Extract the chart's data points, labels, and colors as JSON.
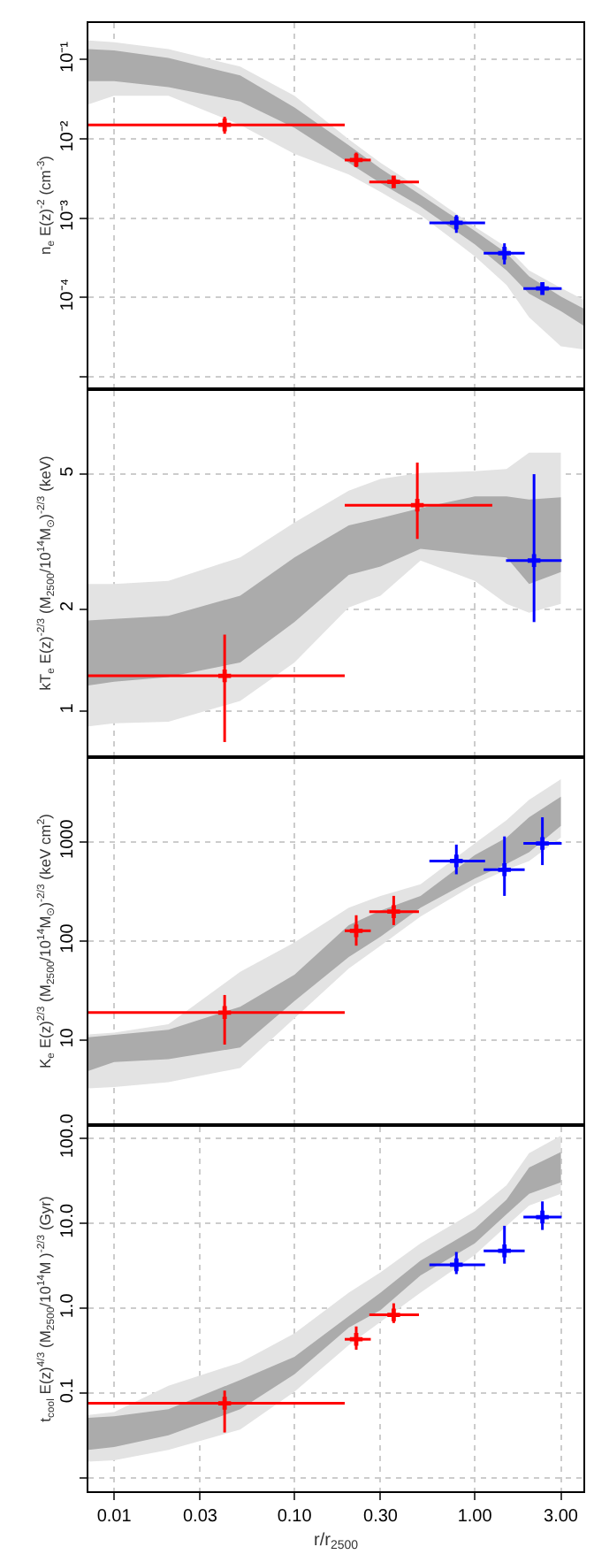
{
  "chart_data": [
    {
      "type": "scatter",
      "ylabel": "n$_{e}$ E(z)$^{-2}$ (cm$^{-3}$)",
      "log": "xy",
      "grid": true,
      "marker": "cross",
      "tick_labels": "y",
      "xlim": [
        0.0072,
        4.0
      ],
      "xticks": [
        {
          "value": 0.01,
          "label": null
        },
        {
          "value": 0.1,
          "label": null
        },
        {
          "value": 1,
          "label": null
        }
      ],
      "ylim": [
        7.3e-06,
        0.29
      ],
      "yticks": [
        {
          "value": 0.1,
          "label": "10⁻¹"
        },
        {
          "value": 0.01,
          "label": "10⁻²"
        },
        {
          "value": 0.001,
          "label": "10⁻³"
        },
        {
          "value": 0.0001,
          "label": "10⁻⁴"
        },
        {
          "value": 1e-05,
          "label": null
        }
      ],
      "series": [
        {
          "color": "#e3e3e3",
          "x": [
            0.0072,
            0.01,
            0.02,
            0.05,
            0.1,
            0.2,
            0.3,
            0.5,
            1.0,
            1.5,
            2.0,
            3.0,
            4.0
          ],
          "values": [
            null,
            null,
            null,
            null,
            null,
            null,
            null,
            null,
            null,
            null,
            null,
            null,
            null
          ],
          "upper": [
            0.175,
            0.166,
            0.136,
            0.0817,
            0.035,
            0.00984,
            0.005,
            0.00233,
            0.000776,
            0.000429,
            0.000218,
            0.000131,
            9.35e-05
          ],
          "lower": [
            0.0272,
            0.035,
            0.035,
            0.015,
            0.00644,
            0.00356,
            0.00214,
            0.00109,
            0.00033,
            0.000143,
            5.6e-05,
            2.4e-05,
            2.2e-05
          ]
        },
        {
          "color": "#ababab",
          "x": [
            0.0072,
            0.01,
            0.02,
            0.05,
            0.1,
            0.2,
            0.3,
            0.5,
            1.0,
            1.5,
            2.0,
            3.0,
            4.0
          ],
          "values": [
            null,
            null,
            null,
            null,
            null,
            null,
            null,
            null,
            null,
            null,
            null,
            null,
            null
          ],
          "upper": [
            0.136,
            0.131,
            0.105,
            0.0632,
            0.0249,
            0.0083,
            0.00422,
            0.00197,
            0.00069,
            0.00036,
            0.000184,
            0.000102,
            7.2e-05
          ],
          "lower": [
            0.0535,
            0.0535,
            0.0451,
            0.0296,
            0.0138,
            0.005,
            0.00276,
            0.0014,
            0.000467,
            0.000218,
            0.000111,
            6.7e-05,
            4.4e-05
          ]
        },
        {
          "color": "#ff0000",
          "x": [
            0.041,
            0.22,
            0.355
          ],
          "values": [
            0.015,
            0.0054,
            0.00286
          ],
          "errors": [
            [
              0.0116,
              0.019
            ],
            [
              0.0044,
              0.0067
            ],
            [
              0.0025,
              0.00327
            ]
          ],
          "xerrors": [
            [
              0.0072,
              0.19
            ],
            [
              0.19,
              0.265
            ],
            [
              0.26,
              0.49
            ]
          ]
        },
        {
          "color": "#0000ff",
          "x": [
            0.79,
            1.46,
            2.37
          ],
          "values": [
            0.00087,
            0.00036,
            0.000129
          ],
          "errors": [
            [
              0.00065,
              0.00109
            ],
            [
              0.00026,
              0.00048
            ],
            [
              0.000109,
              0.000153
            ]
          ],
          "xerrors": [
            [
              0.56,
              1.14
            ],
            [
              1.12,
              1.89
            ],
            [
              1.86,
              3.03
            ]
          ]
        }
      ]
    },
    {
      "type": "scatter",
      "ylabel": "kT$_{e}$ E(z)$^{-2/3}$ (M$_{2500}$/10$^{14}$M$_{⊙}$)$^{-2/3}$ (keV)",
      "log": "xy",
      "grid": true,
      "marker": "cross",
      "tick_labels": "y",
      "xlim": [
        0.0072,
        4.0
      ],
      "xticks": [
        {
          "value": 0.01,
          "label": null
        },
        {
          "value": 0.1,
          "label": null
        },
        {
          "value": 1,
          "label": null
        }
      ],
      "ylim": [
        0.74,
        8.8
      ],
      "yticks": [
        1,
        2,
        5
      ],
      "series": [
        {
          "color": "#e3e3e3",
          "x": [
            0.0072,
            0.01,
            0.02,
            0.05,
            0.1,
            0.2,
            0.3,
            0.5,
            1.0,
            1.5,
            2.0,
            3.0
          ],
          "values": [
            null,
            null,
            null,
            null,
            null,
            null,
            null,
            null,
            null,
            null,
            null,
            null
          ],
          "upper": [
            2.37,
            2.37,
            2.42,
            2.84,
            3.6,
            4.47,
            4.84,
            5.04,
            5.1,
            5.18,
            5.79,
            5.79
          ],
          "lower": [
            0.9,
            0.92,
            0.93,
            1.07,
            1.39,
            2.02,
            2.19,
            2.78,
            2.42,
            2.07,
            1.95,
            2.07
          ]
        },
        {
          "color": "#ababab",
          "x": [
            0.0072,
            0.01,
            0.02,
            0.05,
            0.1,
            0.2,
            0.3,
            0.5,
            1.0,
            1.5,
            2.0,
            3.0
          ],
          "values": [
            null,
            null,
            null,
            null,
            null,
            null,
            null,
            null,
            null,
            null,
            null,
            null
          ],
          "upper": [
            1.85,
            1.87,
            1.91,
            2.19,
            2.84,
            3.53,
            3.71,
            3.97,
            4.3,
            4.3,
            4.21,
            4.27
          ],
          "lower": [
            1.19,
            1.22,
            1.26,
            1.39,
            1.83,
            2.52,
            2.67,
            3.01,
            2.89,
            2.84,
            2.37,
            2.57
          ]
        },
        {
          "color": "#ff0000",
          "x": [
            0.041,
            0.48
          ],
          "values": [
            1.27,
            4.05
          ],
          "errors": [
            [
              0.81,
              1.68
            ],
            [
              3.22,
              5.41
            ]
          ],
          "xerrors": [
            [
              0.0072,
              0.19
            ],
            [
              0.19,
              1.25
            ]
          ]
        },
        {
          "color": "#0000ff",
          "x": [
            2.13
          ],
          "values": [
            2.78
          ],
          "errors": [
            [
              1.83,
              5.0
            ]
          ],
          "xerrors": [
            [
              1.49,
              3.03
            ]
          ]
        }
      ]
    },
    {
      "type": "scatter",
      "ylabel": "K$_{e}$ E(z)$^{2/3}$ (M$_{2500}$/10$^{14}$M$_{⊙}$)$^{-2/3}$ (keV cm$^{2}$)",
      "log": "xy",
      "grid": true,
      "marker": "cross",
      "tick_labels": "y",
      "xlim": [
        0.0072,
        4.0
      ],
      "xticks": [
        {
          "value": 0.01,
          "label": null
        },
        {
          "value": 0.1,
          "label": null
        },
        {
          "value": 1,
          "label": null
        }
      ],
      "ylim": [
        1.47,
        6800
      ],
      "yticks": [
        10,
        100,
        1000
      ],
      "series": [
        {
          "color": "#e3e3e3",
          "x": [
            0.0072,
            0.01,
            0.02,
            0.05,
            0.1,
            0.2,
            0.3,
            0.5,
            1.0,
            1.5,
            2.0,
            3.0
          ],
          "values": [
            null,
            null,
            null,
            null,
            null,
            null,
            null,
            null,
            null,
            null,
            null,
            null
          ],
          "upper": [
            11.5,
            12.0,
            14.6,
            49,
            97,
            217,
            285,
            373,
            960,
            1650,
            2640,
            4250
          ],
          "lower": [
            3.3,
            3.4,
            3.8,
            5.3,
            16.7,
            53,
            90,
            177,
            373,
            523,
            640,
            1100
          ]
        },
        {
          "color": "#ababab",
          "x": [
            0.0072,
            0.01,
            0.02,
            0.05,
            0.1,
            0.2,
            0.3,
            0.5,
            1.0,
            1.5,
            2.0,
            3.0
          ],
          "values": [
            null,
            null,
            null,
            null,
            null,
            null,
            null,
            null,
            null,
            null,
            null,
            null
          ],
          "upper": [
            10.8,
            11.4,
            12.8,
            21.9,
            46,
            145,
            203,
            285,
            733,
            1100,
            1760,
            2830
          ],
          "lower": [
            4.95,
            6.07,
            6.5,
            8.5,
            25,
            69,
            111,
            217,
            427,
            598,
            784,
            1440
          ]
        },
        {
          "color": "#ff0000",
          "x": [
            0.041,
            0.22,
            0.355
          ],
          "values": [
            19.1,
            127,
            198
          ],
          "errors": [
            [
              9.1,
              28.7
            ],
            [
              90,
              182
            ],
            [
              145,
              285
            ]
          ],
          "xerrors": [
            [
              0.0072,
              0.19
            ],
            [
              0.19,
              0.265
            ],
            [
              0.26,
              0.49
            ]
          ]
        },
        {
          "color": "#0000ff",
          "x": [
            0.79,
            1.46,
            2.37
          ],
          "values": [
            640,
            523,
            960
          ],
          "errors": [
            [
              470,
              935
            ],
            [
              285,
              1130
            ],
            [
              582,
              1760
            ]
          ],
          "xerrors": [
            [
              0.56,
              1.14
            ],
            [
              1.12,
              1.89
            ],
            [
              1.86,
              3.03
            ]
          ]
        }
      ]
    },
    {
      "type": "scatter",
      "ylabel": "t$_{cool}$ E(z)$^{4/3}$ (M$_{2500}$/10$^{14}$M )$^{-2/3}$ (Gyr)",
      "xlabel": "r/r$_{2500}$",
      "log": "xy",
      "grid": true,
      "marker": "cross",
      "xlim": [
        0.0072,
        4.0
      ],
      "xticks": [
        0.01,
        0.03,
        {
          "value": 0.1,
          "label": "0.10"
        },
        {
          "value": 0.3,
          "label": "0.30"
        },
        {
          "value": 1,
          "label": "1.00"
        },
        {
          "value": 3,
          "label": "3.00"
        }
      ],
      "ylim": [
        0.00706,
        137
      ],
      "yticks": [
        {
          "value": 100,
          "label": "100.0"
        },
        {
          "value": 10,
          "label": "10.0"
        },
        {
          "value": 1,
          "label": "1.0"
        },
        0.1,
        {
          "value": 0.01,
          "label": null
        }
      ],
      "series": [
        {
          "color": "#e3e3e3",
          "x": [
            0.0072,
            0.01,
            0.02,
            0.05,
            0.1,
            0.2,
            0.3,
            0.5,
            1.0,
            1.5,
            2.0,
            3.0
          ],
          "values": [
            null,
            null,
            null,
            null,
            null,
            null,
            null,
            null,
            null,
            null,
            null,
            null
          ],
          "upper": [
            0.0558,
            0.0604,
            0.123,
            0.231,
            0.508,
            1.53,
            2.66,
            5.85,
            13.9,
            28.3,
            67.4,
            108
          ],
          "lower": [
            0.0158,
            0.0163,
            0.0217,
            0.0376,
            0.105,
            0.37,
            0.695,
            1.53,
            4.27,
            9.4,
            16.3,
            22.3
          ]
        },
        {
          "color": "#ababab",
          "x": [
            0.0072,
            0.01,
            0.02,
            0.05,
            0.1,
            0.2,
            0.3,
            0.5,
            1.0,
            1.5,
            2.0,
            3.0
          ],
          "values": [
            null,
            null,
            null,
            null,
            null,
            null,
            null,
            null,
            null,
            null,
            null,
            null
          ],
          "upper": [
            0.0515,
            0.054,
            0.0653,
            0.144,
            0.27,
            0.815,
            1.53,
            3.65,
            8.67,
            19.1,
            45.5,
            69.5
          ],
          "lower": [
            0.0217,
            0.0234,
            0.0321,
            0.0653,
            0.168,
            0.594,
            0.953,
            2.45,
            5.85,
            12.9,
            22.3,
            30.6
          ]
        },
        {
          "color": "#ff0000",
          "x": [
            0.041,
            0.22,
            0.355
          ],
          "values": [
            0.0766,
            0.434,
            0.841
          ],
          "errors": [
            [
              0.0347,
              0.108
            ],
            [
              0.327,
              0.614
            ],
            [
              0.674,
              1.15
            ]
          ],
          "xerrors": [
            [
              0.0072,
              0.19
            ],
            [
              0.19,
              0.265
            ],
            [
              0.26,
              0.49
            ]
          ]
        },
        {
          "color": "#0000ff",
          "x": [
            0.79,
            1.46,
            2.37
          ],
          "values": [
            3.27,
            4.77,
            11.9
          ],
          "errors": [
            [
              2.54,
              4.62
            ],
            [
              3.37,
              9.4
            ],
            [
              8.4,
              18.2
            ]
          ],
          "xerrors": [
            [
              0.56,
              1.14
            ],
            [
              1.12,
              1.89
            ],
            [
              1.86,
              3.03
            ]
          ]
        }
      ]
    }
  ]
}
